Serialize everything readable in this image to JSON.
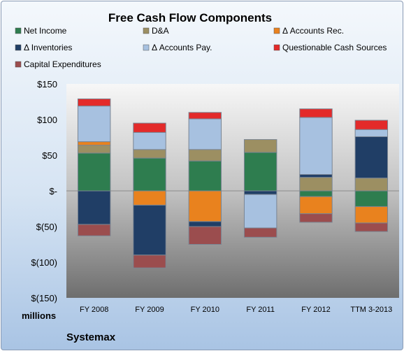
{
  "chart_data": {
    "type": "bar",
    "stacked": true,
    "title": "Free Cash Flow Components",
    "units_label": "millions",
    "company": "Systemax",
    "ylim": [
      -150,
      150
    ],
    "yticks": [
      150,
      100,
      50,
      0,
      -50,
      -100,
      -150
    ],
    "ytick_labels": [
      "$150",
      "$100",
      "$50",
      "$-",
      "$(50)",
      "$(100)",
      "$(150)"
    ],
    "categories": [
      "FY 2008",
      "FY 2009",
      "FY 2010",
      "FY 2011",
      "FY 2012",
      "TTM 3-2013"
    ],
    "legend_position": "top",
    "grid": false,
    "series": [
      {
        "name": "Net Income",
        "color": "#2e7d4f",
        "values": [
          53,
          46,
          42,
          54,
          -8,
          -22
        ]
      },
      {
        "name": "D&A",
        "color": "#9c8f62",
        "values": [
          11,
          12,
          16,
          18,
          19,
          18
        ]
      },
      {
        "name": "Δ Accounts Rec.",
        "color": "#e9821e",
        "values": [
          5,
          -20,
          -43,
          0,
          -24,
          -23
        ]
      },
      {
        "name": "Δ Inventories",
        "color": "#203e66",
        "values": [
          -47,
          -70,
          -7,
          -5,
          4,
          58
        ]
      },
      {
        "name": "Δ Accounts Pay.",
        "color": "#a7c1e0",
        "values": [
          50,
          24,
          43,
          -47,
          80,
          10
        ]
      },
      {
        "name": "Questionable Cash Sources",
        "color": "#e32a2a",
        "values": [
          10,
          13,
          9,
          0,
          12,
          13
        ]
      },
      {
        "name": "Capital Expenditures",
        "color": "#9b4d4e",
        "values": [
          -16,
          -18,
          -25,
          -13,
          -12,
          -12
        ]
      }
    ]
  }
}
